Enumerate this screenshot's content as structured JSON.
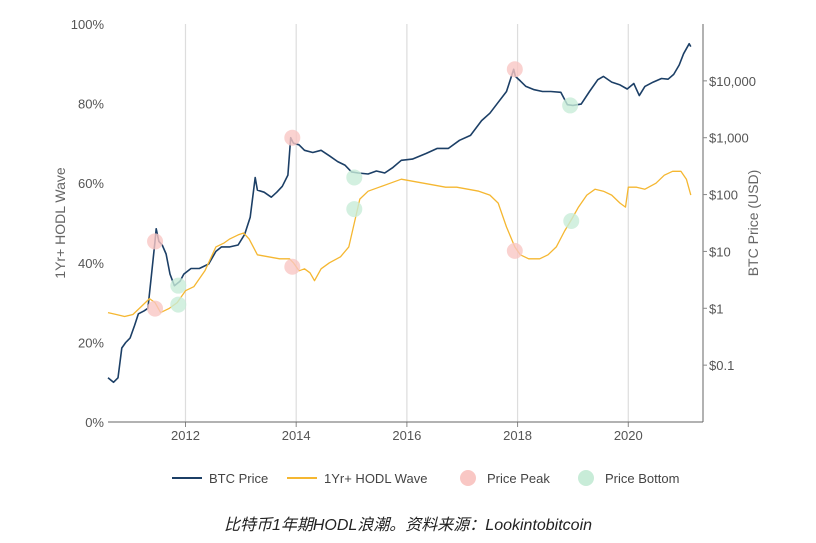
{
  "chart_data": {
    "type": "line",
    "title": "",
    "y_left": {
      "label": "1Yr+ HODL Wave",
      "range": [
        0,
        100
      ],
      "ticks": [
        0,
        20,
        40,
        60,
        80,
        100
      ],
      "tick_labels": [
        "0%",
        "20%",
        "40%",
        "60%",
        "80%",
        "100%"
      ]
    },
    "y_right": {
      "label": "BTC Price (USD)",
      "scale": "log",
      "range": [
        0.01,
        100000
      ],
      "ticks": [
        0.1,
        1,
        10,
        100,
        1000,
        10000
      ],
      "tick_labels": [
        "$0.1",
        "$1",
        "$10",
        "$100",
        "$1,000",
        "$10,000"
      ]
    },
    "x_axis": {
      "range": [
        2010.6,
        2021.35
      ],
      "ticks": [
        2012,
        2014,
        2016,
        2018,
        2020
      ],
      "tick_labels": [
        "2012",
        "2014",
        "2016",
        "2018",
        "2020"
      ],
      "grid": true
    },
    "series": [
      {
        "name": "BTC Price",
        "axis": "right",
        "color": "#1c3f66",
        "points": [
          [
            2010.6,
            0.06
          ],
          [
            2010.7,
            0.05
          ],
          [
            2010.78,
            0.06
          ],
          [
            2010.85,
            0.2
          ],
          [
            2010.92,
            0.25
          ],
          [
            2011.0,
            0.3
          ],
          [
            2011.08,
            0.5
          ],
          [
            2011.15,
            0.8
          ],
          [
            2011.25,
            0.9
          ],
          [
            2011.32,
            1.0
          ],
          [
            2011.38,
            3.5
          ],
          [
            2011.45,
            15
          ],
          [
            2011.47,
            25
          ],
          [
            2011.52,
            15
          ],
          [
            2011.58,
            13
          ],
          [
            2011.65,
            9
          ],
          [
            2011.72,
            4
          ],
          [
            2011.8,
            2.5
          ],
          [
            2011.9,
            3
          ],
          [
            2011.97,
            4
          ],
          [
            2012.1,
            5
          ],
          [
            2012.25,
            5
          ],
          [
            2012.42,
            6
          ],
          [
            2012.55,
            10
          ],
          [
            2012.65,
            12
          ],
          [
            2012.8,
            12
          ],
          [
            2012.95,
            13
          ],
          [
            2013.07,
            20
          ],
          [
            2013.17,
            40
          ],
          [
            2013.26,
            200
          ],
          [
            2013.3,
            120
          ],
          [
            2013.42,
            110
          ],
          [
            2013.55,
            90
          ],
          [
            2013.65,
            110
          ],
          [
            2013.75,
            140
          ],
          [
            2013.85,
            220
          ],
          [
            2013.9,
            1000
          ],
          [
            2013.95,
            800
          ],
          [
            2014.05,
            750
          ],
          [
            2014.15,
            600
          ],
          [
            2014.3,
            550
          ],
          [
            2014.45,
            600
          ],
          [
            2014.6,
            480
          ],
          [
            2014.75,
            380
          ],
          [
            2014.88,
            330
          ],
          [
            2015.0,
            250
          ],
          [
            2015.12,
            240
          ],
          [
            2015.3,
            230
          ],
          [
            2015.45,
            260
          ],
          [
            2015.6,
            240
          ],
          [
            2015.75,
            300
          ],
          [
            2015.9,
            400
          ],
          [
            2016.1,
            420
          ],
          [
            2016.35,
            530
          ],
          [
            2016.55,
            650
          ],
          [
            2016.75,
            650
          ],
          [
            2016.95,
            900
          ],
          [
            2017.15,
            1100
          ],
          [
            2017.35,
            2000
          ],
          [
            2017.5,
            2700
          ],
          [
            2017.65,
            4200
          ],
          [
            2017.8,
            6500
          ],
          [
            2017.93,
            16000
          ],
          [
            2017.96,
            12000
          ],
          [
            2018.05,
            10000
          ],
          [
            2018.15,
            8000
          ],
          [
            2018.3,
            7000
          ],
          [
            2018.45,
            6500
          ],
          [
            2018.6,
            6500
          ],
          [
            2018.78,
            6300
          ],
          [
            2018.9,
            3800
          ],
          [
            2019.0,
            3700
          ],
          [
            2019.15,
            3900
          ],
          [
            2019.3,
            6500
          ],
          [
            2019.45,
            10500
          ],
          [
            2019.55,
            12000
          ],
          [
            2019.7,
            9500
          ],
          [
            2019.85,
            8500
          ],
          [
            2019.98,
            7200
          ],
          [
            2020.1,
            9000
          ],
          [
            2020.2,
            5500
          ],
          [
            2020.3,
            8000
          ],
          [
            2020.45,
            9500
          ],
          [
            2020.6,
            11000
          ],
          [
            2020.72,
            10700
          ],
          [
            2020.82,
            13000
          ],
          [
            2020.92,
            19000
          ],
          [
            2021.0,
            30000
          ],
          [
            2021.1,
            45000
          ],
          [
            2021.13,
            40000
          ]
        ]
      },
      {
        "name": "1Yr+ HODL Wave",
        "axis": "left",
        "color": "#f5b731",
        "points": [
          [
            2010.6,
            27.5
          ],
          [
            2010.75,
            27
          ],
          [
            2010.9,
            26.5
          ],
          [
            2011.05,
            27
          ],
          [
            2011.2,
            29
          ],
          [
            2011.35,
            31
          ],
          [
            2011.45,
            30
          ],
          [
            2011.55,
            27.5
          ],
          [
            2011.7,
            28.5
          ],
          [
            2011.85,
            30
          ],
          [
            2012.0,
            33
          ],
          [
            2012.15,
            34
          ],
          [
            2012.35,
            38
          ],
          [
            2012.55,
            44
          ],
          [
            2012.7,
            45
          ],
          [
            2012.8,
            46
          ],
          [
            2012.95,
            47
          ],
          [
            2013.05,
            47.5
          ],
          [
            2013.15,
            46
          ],
          [
            2013.3,
            42
          ],
          [
            2013.5,
            41.5
          ],
          [
            2013.7,
            41
          ],
          [
            2013.88,
            41
          ],
          [
            2013.95,
            40
          ],
          [
            2014.05,
            38
          ],
          [
            2014.15,
            38.5
          ],
          [
            2014.25,
            37.5
          ],
          [
            2014.33,
            35.5
          ],
          [
            2014.45,
            38.5
          ],
          [
            2014.6,
            40
          ],
          [
            2014.8,
            41.5
          ],
          [
            2014.95,
            44
          ],
          [
            2015.05,
            50
          ],
          [
            2015.15,
            56
          ],
          [
            2015.3,
            58
          ],
          [
            2015.5,
            59
          ],
          [
            2015.7,
            60
          ],
          [
            2015.9,
            61
          ],
          [
            2016.1,
            60.5
          ],
          [
            2016.3,
            60
          ],
          [
            2016.5,
            59.5
          ],
          [
            2016.7,
            59
          ],
          [
            2016.9,
            59
          ],
          [
            2017.1,
            58.5
          ],
          [
            2017.3,
            58
          ],
          [
            2017.5,
            57
          ],
          [
            2017.65,
            55
          ],
          [
            2017.8,
            49
          ],
          [
            2017.95,
            44
          ],
          [
            2018.05,
            42
          ],
          [
            2018.2,
            41
          ],
          [
            2018.4,
            41
          ],
          [
            2018.55,
            42
          ],
          [
            2018.7,
            44
          ],
          [
            2018.85,
            48
          ],
          [
            2018.98,
            51
          ],
          [
            2019.1,
            54
          ],
          [
            2019.25,
            57
          ],
          [
            2019.4,
            58.5
          ],
          [
            2019.55,
            58
          ],
          [
            2019.7,
            57
          ],
          [
            2019.85,
            55
          ],
          [
            2019.95,
            54
          ],
          [
            2020.0,
            59
          ],
          [
            2020.15,
            59
          ],
          [
            2020.3,
            58.5
          ],
          [
            2020.5,
            60
          ],
          [
            2020.65,
            62
          ],
          [
            2020.8,
            63
          ],
          [
            2020.95,
            63
          ],
          [
            2021.05,
            61
          ],
          [
            2021.13,
            57
          ]
        ]
      }
    ],
    "annotations": [
      {
        "name": "Price Peak",
        "color": "#f9c7c4",
        "points": [
          {
            "x": 2011.45,
            "axis": "right",
            "y": 15
          },
          {
            "x": 2013.93,
            "axis": "right",
            "y": 1000
          },
          {
            "x": 2017.95,
            "axis": "right",
            "y": 16000
          },
          {
            "x": 2011.45,
            "axis": "left",
            "y": 28.5
          },
          {
            "x": 2013.93,
            "axis": "left",
            "y": 39
          },
          {
            "x": 2017.95,
            "axis": "left",
            "y": 43
          }
        ]
      },
      {
        "name": "Price Bottom",
        "color": "#c8ecd8",
        "points": [
          {
            "x": 2011.87,
            "axis": "right",
            "y": 2.5
          },
          {
            "x": 2015.05,
            "axis": "right",
            "y": 200
          },
          {
            "x": 2018.95,
            "axis": "right",
            "y": 3700
          },
          {
            "x": 2011.87,
            "axis": "left",
            "y": 29.5
          },
          {
            "x": 2015.05,
            "axis": "left",
            "y": 53.5
          },
          {
            "x": 2018.97,
            "axis": "left",
            "y": 50.5
          }
        ]
      }
    ],
    "legend": {
      "placement": "bottom",
      "items": [
        {
          "label": "BTC Price",
          "kind": "line",
          "color": "#1c3f66"
        },
        {
          "label": "1Yr+ HODL Wave",
          "kind": "line",
          "color": "#f5b731"
        },
        {
          "label": "Price Peak",
          "kind": "dot",
          "color": "#f9c7c4"
        },
        {
          "label": "Price Bottom",
          "kind": "dot",
          "color": "#c8ecd8"
        }
      ]
    }
  },
  "caption": "比特币1年期HODL浪潮。资料来源：Lookintobitcoin"
}
